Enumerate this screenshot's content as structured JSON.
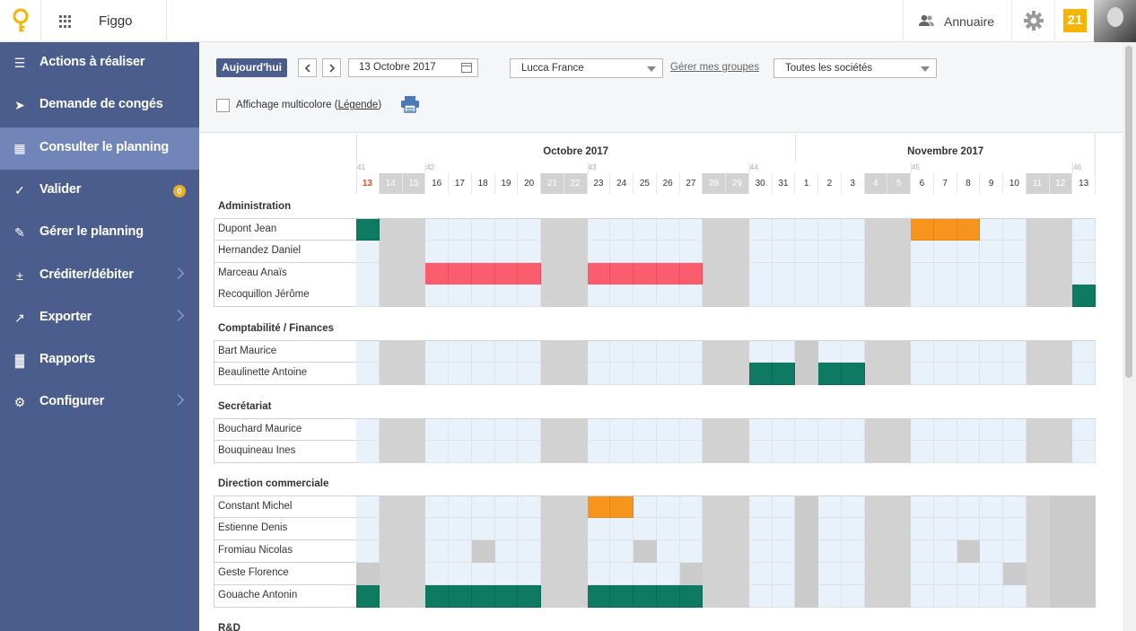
{
  "app": {
    "name": "Figgo",
    "annuaire_label": "Annuaire",
    "notification_count": "21"
  },
  "colors": {
    "sidebar": "#4a5d8d",
    "sidebar_active": "#7185b8",
    "weekend": "#d2d2d2",
    "workday": "#e9f1fb",
    "leave_green": "#0d7a61",
    "leave_red": "#fb5d6e",
    "leave_orange": "#f6941e",
    "notification": "#f4b400"
  },
  "sidebar": {
    "items": [
      {
        "label": "Actions à réaliser",
        "icon": "checklist-icon",
        "chevron": false
      },
      {
        "label": "Demande de congés",
        "icon": "paper-plane-icon",
        "chevron": false
      },
      {
        "label": "Consulter le planning",
        "icon": "calendar-icon",
        "chevron": false,
        "active": true
      },
      {
        "label": "Valider",
        "icon": "check-icon",
        "chevron": false,
        "badge": "0"
      },
      {
        "label": "Gérer le planning",
        "icon": "edit-calendar-icon",
        "chevron": false
      },
      {
        "label": "Créditer/débiter",
        "icon": "plus-minus-icon",
        "chevron": true
      },
      {
        "label": "Exporter",
        "icon": "export-icon",
        "chevron": true
      },
      {
        "label": "Rapports",
        "icon": "bar-chart-icon",
        "chevron": false
      },
      {
        "label": "Configurer",
        "icon": "gear-icon",
        "chevron": true
      }
    ]
  },
  "toolbar": {
    "today_label": "Aujourd'hui",
    "date_value": "13 Octobre 2017",
    "group_select": "Lucca France",
    "manage_groups_link": "Gérer mes groupes",
    "company_select": "Toutes les sociétés",
    "multicolor_label": "Affichage multicolore (",
    "legend_link": "Légende",
    "multicolor_suffix": ")"
  },
  "planning": {
    "months": [
      "Octobre 2017",
      "Novembre 2017"
    ],
    "week_numbers": [
      "41",
      "42",
      "43",
      "44",
      "45",
      "46"
    ],
    "days": [
      {
        "d": "13",
        "we": false,
        "today": true
      },
      {
        "d": "14",
        "we": true
      },
      {
        "d": "15",
        "we": true
      },
      {
        "d": "16",
        "we": false
      },
      {
        "d": "17",
        "we": false
      },
      {
        "d": "18",
        "we": false
      },
      {
        "d": "19",
        "we": false
      },
      {
        "d": "20",
        "we": false
      },
      {
        "d": "21",
        "we": true
      },
      {
        "d": "22",
        "we": true
      },
      {
        "d": "23",
        "we": false
      },
      {
        "d": "24",
        "we": false
      },
      {
        "d": "25",
        "we": false
      },
      {
        "d": "26",
        "we": false
      },
      {
        "d": "27",
        "we": false
      },
      {
        "d": "28",
        "we": true
      },
      {
        "d": "29",
        "we": true
      },
      {
        "d": "30",
        "we": false
      },
      {
        "d": "31",
        "we": false
      },
      {
        "d": "1",
        "we": false
      },
      {
        "d": "2",
        "we": false
      },
      {
        "d": "3",
        "we": false
      },
      {
        "d": "4",
        "we": true
      },
      {
        "d": "5",
        "we": true
      },
      {
        "d": "6",
        "we": false
      },
      {
        "d": "7",
        "we": false
      },
      {
        "d": "8",
        "we": false
      },
      {
        "d": "9",
        "we": false
      },
      {
        "d": "10",
        "we": false
      },
      {
        "d": "11",
        "we": true
      },
      {
        "d": "12",
        "we": true
      },
      {
        "d": "13",
        "we": false
      }
    ],
    "groups": [
      {
        "name": "Administration",
        "employees": [
          {
            "name": "Dupont Jean",
            "leaves": {
              "0": "green",
              "24": "orange",
              "25": "orange",
              "26": "orange"
            }
          },
          {
            "name": "Hernandez Daniel",
            "leaves": {}
          },
          {
            "name": "Marceau Anaïs",
            "leaves": {
              "3": "red",
              "4": "red",
              "5": "red",
              "6": "red",
              "7": "red",
              "10": "red",
              "11": "red",
              "12": "red",
              "13": "red",
              "14": "red"
            }
          },
          {
            "name": "Recoquillon Jérôme",
            "leaves": {
              "31": "green"
            }
          }
        ]
      },
      {
        "name": "Comptabilité / Finances",
        "employees": [
          {
            "name": "Bart Maurice",
            "leaves": {
              "19": "grey"
            }
          },
          {
            "name": "Beaulinette Antoine",
            "leaves": {
              "17": "green",
              "18": "green",
              "19": "grey",
              "20": "green",
              "21": "green"
            }
          }
        ]
      },
      {
        "name": "Secrétariat",
        "employees": [
          {
            "name": "Bouchard Maurice",
            "leaves": {}
          },
          {
            "name": "Bouquineau Ines",
            "leaves": {}
          }
        ]
      },
      {
        "name": "Direction commerciale",
        "employees": [
          {
            "name": "Constant Michel",
            "leaves": {
              "10": "orange",
              "11": "orange",
              "19": "grey",
              "30": "grey",
              "31": "grey"
            }
          },
          {
            "name": "Estienne Denis",
            "leaves": {
              "19": "grey",
              "30": "grey",
              "31": "grey"
            }
          },
          {
            "name": "Fromiau Nicolas",
            "leaves": {
              "5": "grey",
              "12": "grey",
              "19": "grey",
              "26": "grey",
              "30": "grey",
              "31": "grey"
            }
          },
          {
            "name": "Geste Florence",
            "leaves": {
              "0": "grey",
              "14": "grey",
              "19": "grey",
              "28": "grey",
              "30": "grey",
              "31": "grey"
            }
          },
          {
            "name": "Gouache Antonin",
            "leaves": {
              "0": "green",
              "3": "green",
              "4": "green",
              "5": "green",
              "6": "green",
              "7": "green",
              "10": "green",
              "11": "green",
              "12": "green",
              "13": "green",
              "14": "green",
              "19": "grey",
              "30": "grey",
              "31": "grey"
            }
          }
        ]
      },
      {
        "name": "R&D",
        "employees": [
          {
            "name": "",
            "leaves": {}
          }
        ]
      }
    ]
  }
}
